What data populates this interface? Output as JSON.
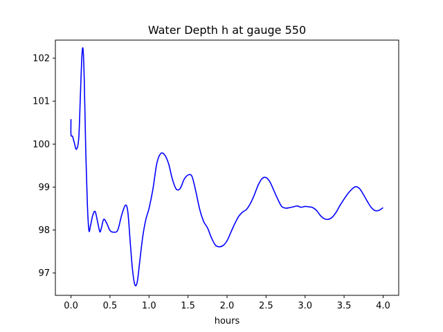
{
  "chart_data": {
    "type": "line",
    "title": "Water Depth h at gauge 550",
    "xlabel": "hours",
    "ylabel": "",
    "xlim": [
      -0.2,
      4.2
    ],
    "ylim": [
      96.48,
      102.42
    ],
    "x_ticks": [
      0.0,
      0.5,
      1.0,
      1.5,
      2.0,
      2.5,
      3.0,
      3.5,
      4.0
    ],
    "x_tick_labels": [
      "0.0",
      "0.5",
      "1.0",
      "1.5",
      "2.0",
      "2.5",
      "3.0",
      "3.5",
      "4.0"
    ],
    "y_ticks": [
      97,
      98,
      99,
      100,
      101,
      102
    ],
    "y_tick_labels": [
      "97",
      "98",
      "99",
      "100",
      "101",
      "102"
    ],
    "grid": false,
    "legend": "none",
    "series": [
      {
        "color": "#0000ff",
        "x": [
          0.0,
          0.0,
          0.02,
          0.04,
          0.07,
          0.1,
          0.12,
          0.14,
          0.155,
          0.17,
          0.19,
          0.21,
          0.23,
          0.25,
          0.28,
          0.31,
          0.34,
          0.37,
          0.39,
          0.42,
          0.46,
          0.5,
          0.55,
          0.6,
          0.65,
          0.7,
          0.73,
          0.76,
          0.79,
          0.82,
          0.85,
          0.88,
          0.92,
          0.96,
          1.0,
          1.05,
          1.1,
          1.15,
          1.2,
          1.25,
          1.3,
          1.35,
          1.4,
          1.45,
          1.5,
          1.55,
          1.6,
          1.65,
          1.7,
          1.75,
          1.8,
          1.85,
          1.9,
          1.95,
          2.0,
          2.05,
          2.1,
          2.15,
          2.2,
          2.25,
          2.3,
          2.35,
          2.4,
          2.45,
          2.5,
          2.55,
          2.6,
          2.65,
          2.7,
          2.75,
          2.8,
          2.85,
          2.9,
          2.95,
          3.0,
          3.05,
          3.1,
          3.15,
          3.2,
          3.25,
          3.3,
          3.35,
          3.4,
          3.45,
          3.5,
          3.55,
          3.6,
          3.65,
          3.7,
          3.75,
          3.8,
          3.85,
          3.9,
          3.95,
          4.0
        ],
        "values": [
          100.58,
          100.22,
          100.18,
          100.05,
          99.88,
          100.15,
          101.1,
          102.05,
          102.2,
          101.5,
          99.8,
          98.6,
          97.99,
          98.1,
          98.35,
          98.43,
          98.2,
          97.96,
          98.05,
          98.25,
          98.15,
          97.99,
          97.95,
          98.0,
          98.35,
          98.58,
          98.4,
          97.7,
          97.05,
          96.72,
          96.8,
          97.25,
          97.85,
          98.25,
          98.5,
          98.95,
          99.55,
          99.78,
          99.75,
          99.55,
          99.18,
          98.95,
          98.97,
          99.18,
          99.28,
          99.25,
          98.9,
          98.48,
          98.2,
          98.05,
          97.82,
          97.65,
          97.61,
          97.64,
          97.75,
          97.95,
          98.15,
          98.32,
          98.42,
          98.48,
          98.62,
          98.82,
          99.05,
          99.2,
          99.22,
          99.12,
          98.92,
          98.72,
          98.55,
          98.51,
          98.52,
          98.54,
          98.56,
          98.53,
          98.55,
          98.54,
          98.52,
          98.45,
          98.33,
          98.26,
          98.25,
          98.3,
          98.42,
          98.58,
          98.72,
          98.85,
          98.95,
          99.01,
          98.96,
          98.82,
          98.66,
          98.52,
          98.45,
          98.46,
          98.52
        ]
      }
    ]
  }
}
